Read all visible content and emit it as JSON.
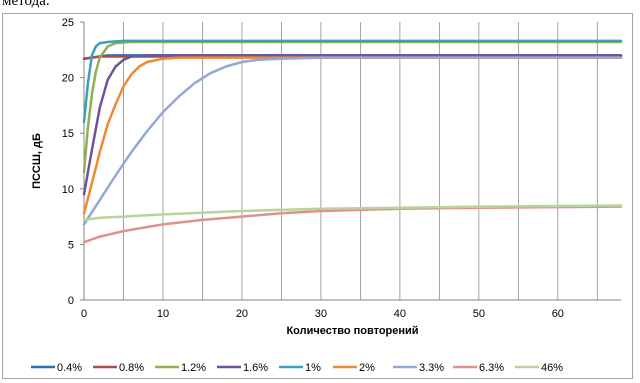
{
  "page": {
    "top_text": "метода."
  },
  "chart_data": {
    "type": "line",
    "title": "",
    "xlabel": "Количество повторений",
    "ylabel": "ПССШ, дБ",
    "xlim": [
      0,
      68
    ],
    "ylim": [
      0,
      25
    ],
    "xticks": [
      0,
      10,
      20,
      30,
      40,
      50,
      60
    ],
    "yticks": [
      0,
      5,
      10,
      15,
      20,
      25
    ],
    "grid": "vertical lines every 5 repetitions",
    "legend_position": "bottom",
    "series": [
      {
        "name": "0.4%",
        "color": "#2e6fb2",
        "x": [
          0,
          1,
          2,
          3,
          4,
          68
        ],
        "y": [
          21.7,
          21.8,
          21.9,
          22.0,
          22.0,
          22.0
        ]
      },
      {
        "name": "0.8%",
        "color": "#b04a46",
        "x": [
          0,
          1,
          2,
          3,
          4,
          68
        ],
        "y": [
          21.7,
          21.8,
          21.9,
          21.9,
          21.9,
          21.9
        ]
      },
      {
        "name": "1.2%",
        "color": "#8fb04e",
        "x": [
          0,
          0.5,
          1,
          1.5,
          2,
          3,
          4,
          6,
          68
        ],
        "y": [
          11.5,
          15.5,
          18.5,
          20.5,
          21.8,
          22.8,
          23.1,
          23.2,
          23.2
        ]
      },
      {
        "name": "1.6%",
        "color": "#70549a",
        "x": [
          0,
          1,
          2,
          3,
          4,
          5,
          6,
          8,
          68
        ],
        "y": [
          9.5,
          13.5,
          17.3,
          19.8,
          21.0,
          21.6,
          21.9,
          22.0,
          22.0
        ]
      },
      {
        "name": "1%",
        "color": "#3aa0bd",
        "x": [
          0,
          0.5,
          1,
          1.5,
          2,
          3,
          5,
          68
        ],
        "y": [
          16.0,
          19.5,
          22.0,
          22.8,
          23.1,
          23.2,
          23.3,
          23.3
        ]
      },
      {
        "name": "2%",
        "color": "#ee8a32",
        "x": [
          0,
          1,
          2,
          3,
          4,
          5,
          6,
          7,
          8,
          10,
          12,
          68
        ],
        "y": [
          7.8,
          10.5,
          13.3,
          15.8,
          17.6,
          19.2,
          20.3,
          21.0,
          21.4,
          21.7,
          21.8,
          21.8
        ]
      },
      {
        "name": "3.3%",
        "color": "#93a8d4",
        "x": [
          0,
          2,
          4,
          6,
          8,
          10,
          12,
          14,
          16,
          18,
          20,
          22,
          25,
          30,
          68
        ],
        "y": [
          6.8,
          9.0,
          11.2,
          13.3,
          15.2,
          16.9,
          18.3,
          19.5,
          20.4,
          21.0,
          21.4,
          21.6,
          21.7,
          21.8,
          21.8
        ]
      },
      {
        "name": "6.3%",
        "color": "#e0918f",
        "x": [
          0,
          2,
          5,
          10,
          15,
          20,
          25,
          30,
          40,
          50,
          68
        ],
        "y": [
          5.2,
          5.7,
          6.2,
          6.8,
          7.2,
          7.5,
          7.8,
          8.0,
          8.2,
          8.3,
          8.4
        ]
      },
      {
        "name": "46%",
        "color": "#b9d49a",
        "x": [
          0,
          2,
          5,
          10,
          20,
          30,
          40,
          50,
          68
        ],
        "y": [
          7.2,
          7.4,
          7.5,
          7.7,
          8.0,
          8.2,
          8.3,
          8.4,
          8.5
        ]
      }
    ]
  }
}
